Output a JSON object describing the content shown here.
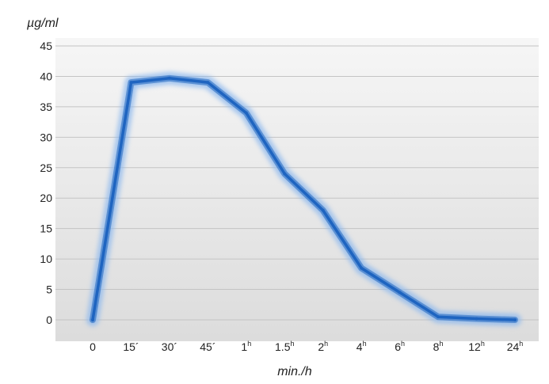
{
  "chart_data": {
    "type": "line",
    "ylabel": "µg/ml",
    "xlabel": "min./h",
    "ylim": [
      0,
      45
    ],
    "yticks": [
      0,
      5,
      10,
      15,
      20,
      25,
      30,
      35,
      40,
      45
    ],
    "grid": true,
    "categories": [
      {
        "main": "0",
        "suffix": ""
      },
      {
        "main": "15",
        "suffix": "´"
      },
      {
        "main": "30",
        "suffix": "´"
      },
      {
        "main": "45",
        "suffix": "´"
      },
      {
        "main": "1",
        "suffix": "h"
      },
      {
        "main": "1.5",
        "suffix": "h"
      },
      {
        "main": "2",
        "suffix": "h"
      },
      {
        "main": "4",
        "suffix": "h"
      },
      {
        "main": "6",
        "suffix": "h"
      },
      {
        "main": "8",
        "suffix": "h"
      },
      {
        "main": "12",
        "suffix": "h"
      },
      {
        "main": "24",
        "suffix": "h"
      }
    ],
    "values": [
      0,
      39,
      39.7,
      39,
      34,
      24,
      18,
      8.5,
      4.5,
      0.5,
      0.2,
      0
    ],
    "colors": {
      "line": "#1e64c0",
      "glow": "#8cb8ee",
      "plot_bg_top": "#f6f6f6",
      "plot_bg_bottom": "#dcdcdc",
      "grid": "#c4c4c4"
    }
  }
}
